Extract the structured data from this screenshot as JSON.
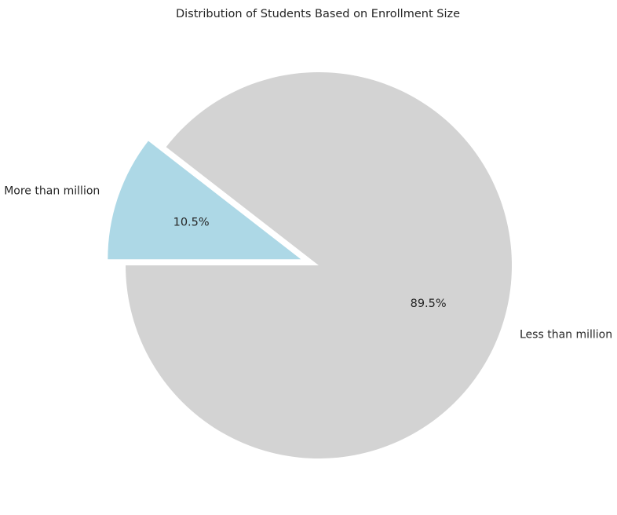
{
  "chart_data": {
    "type": "pie",
    "title": "Distribution of Students Based on Enrollment Size",
    "slices": [
      {
        "label": "Less than million",
        "value": 89.5,
        "pct_label": "89.5%",
        "color": "#d3d3d3",
        "exploded": false
      },
      {
        "label": "More than million",
        "value": 10.5,
        "pct_label": "10.5%",
        "color": "#add8e6",
        "exploded": true
      }
    ],
    "start_angle_deg": 180,
    "direction": "counterclockwise",
    "legend": "none"
  }
}
